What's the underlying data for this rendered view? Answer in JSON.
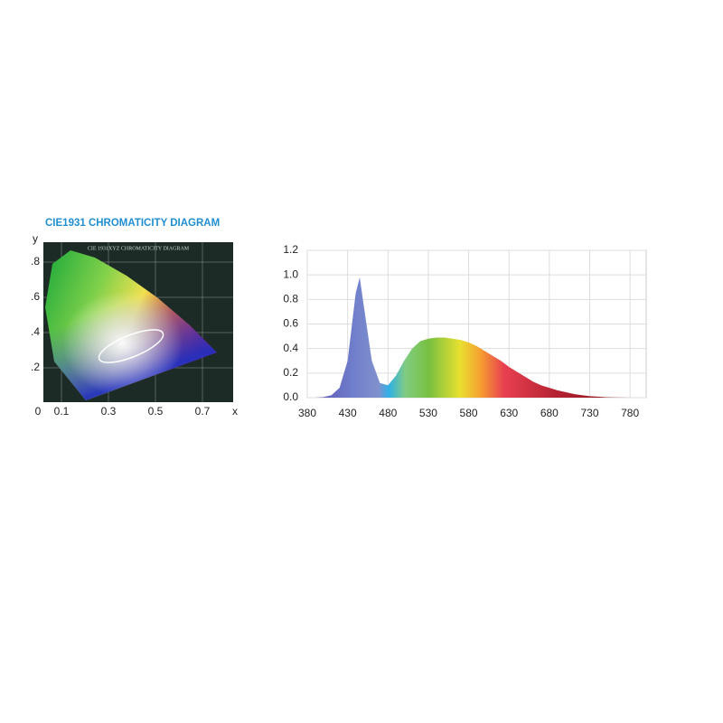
{
  "chart_data": [
    {
      "type": "chromaticity",
      "title": "CIE1931 CHROMATICITY DIAGRAM",
      "inner_title": "CIE 1931XYZ CHROMATICITY DIAGRAM",
      "xlabel": "x",
      "ylabel": "y",
      "xlim": [
        0,
        0.83
      ],
      "ylim": [
        0,
        0.9
      ],
      "xticks": [
        0,
        0.1,
        0.3,
        0.5,
        0.7
      ],
      "yticks": [
        {
          "value": 0.2,
          "label": ".2"
        },
        {
          "value": 0.4,
          "label": ".4"
        },
        {
          "value": 0.6,
          "label": ".6"
        },
        {
          "value": 0.8,
          "label": ".8"
        }
      ]
    },
    {
      "type": "area",
      "x": [
        380,
        390,
        400,
        410,
        420,
        430,
        440,
        445,
        450,
        460,
        470,
        480,
        490,
        500,
        510,
        520,
        530,
        540,
        550,
        560,
        570,
        580,
        590,
        600,
        610,
        620,
        630,
        640,
        650,
        660,
        670,
        680,
        690,
        700,
        710,
        720,
        730,
        740,
        750,
        760,
        770,
        780
      ],
      "values": [
        0,
        0,
        0.005,
        0.02,
        0.08,
        0.3,
        0.85,
        0.98,
        0.75,
        0.3,
        0.12,
        0.1,
        0.18,
        0.3,
        0.4,
        0.46,
        0.48,
        0.49,
        0.49,
        0.48,
        0.47,
        0.45,
        0.42,
        0.38,
        0.34,
        0.3,
        0.25,
        0.21,
        0.17,
        0.13,
        0.1,
        0.08,
        0.06,
        0.045,
        0.03,
        0.02,
        0.012,
        0.008,
        0.004,
        0.002,
        0.001,
        0
      ],
      "xlim": [
        380,
        800
      ],
      "ylim": [
        0,
        1.2
      ],
      "xticks": [
        380,
        430,
        480,
        530,
        580,
        630,
        680,
        730,
        780
      ],
      "yticks": [
        {
          "value": 0,
          "label": "0.0"
        },
        0.2,
        0.4,
        0.6,
        0.8,
        {
          "value": 1,
          "label": "1.0"
        },
        1.2
      ],
      "grid": true
    }
  ]
}
